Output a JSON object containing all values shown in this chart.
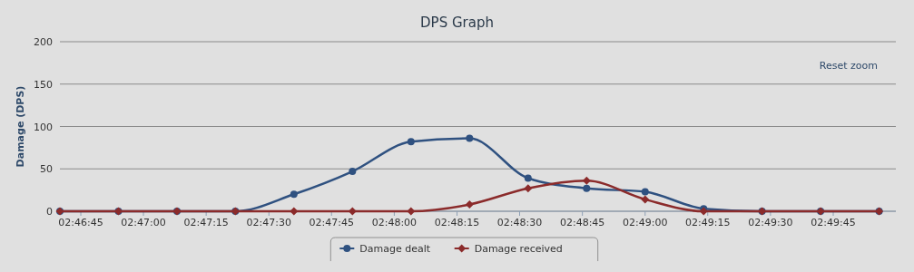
{
  "chart_data": {
    "type": "line",
    "title": "DPS Graph",
    "ylabel": "Damage (DPS)",
    "annotations": [
      "Reset zoom"
    ],
    "x": [
      2.77778,
      2.78167,
      2.78556,
      2.78944,
      2.79333,
      2.79722,
      2.80111,
      2.805,
      2.80889,
      2.81278,
      2.81667,
      2.82056,
      2.82444,
      2.82833,
      2.83222
    ],
    "series": [
      {
        "name": "Damage dealt",
        "color": "#2f5180",
        "marker": "circle",
        "values": [
          0,
          0,
          0,
          0,
          20,
          47,
          82,
          86,
          39,
          27,
          23,
          3,
          0,
          0,
          0
        ]
      },
      {
        "name": "Damage received",
        "color": "#8b2b2b",
        "marker": "diamond",
        "values": [
          0,
          0,
          0,
          0,
          0,
          0,
          0,
          8,
          27,
          36,
          14,
          0,
          0,
          0,
          0
        ]
      }
    ],
    "xlim": [
      2.77778,
      2.83333
    ],
    "xticks": [
      {
        "value": 2.77917,
        "label": "02:46:45"
      },
      {
        "value": 2.78333,
        "label": "02:47:00"
      },
      {
        "value": 2.7875,
        "label": "02:47:15"
      },
      {
        "value": 2.79167,
        "label": "02:47:30"
      },
      {
        "value": 2.79583,
        "label": "02:47:45"
      },
      {
        "value": 2.8,
        "label": "02:48:00"
      },
      {
        "value": 2.80417,
        "label": "02:48:15"
      },
      {
        "value": 2.80833,
        "label": "02:48:30"
      },
      {
        "value": 2.8125,
        "label": "02:48:45"
      },
      {
        "value": 2.81667,
        "label": "02:49:00"
      },
      {
        "value": 2.82083,
        "label": "02:49:15"
      },
      {
        "value": 2.825,
        "label": "02:49:30"
      },
      {
        "value": 2.82917,
        "label": "02:49:45"
      }
    ],
    "ylim": [
      0,
      200
    ],
    "yticks": [
      0,
      50,
      100,
      150,
      200
    ],
    "grid": "y",
    "legend": "bottom"
  }
}
